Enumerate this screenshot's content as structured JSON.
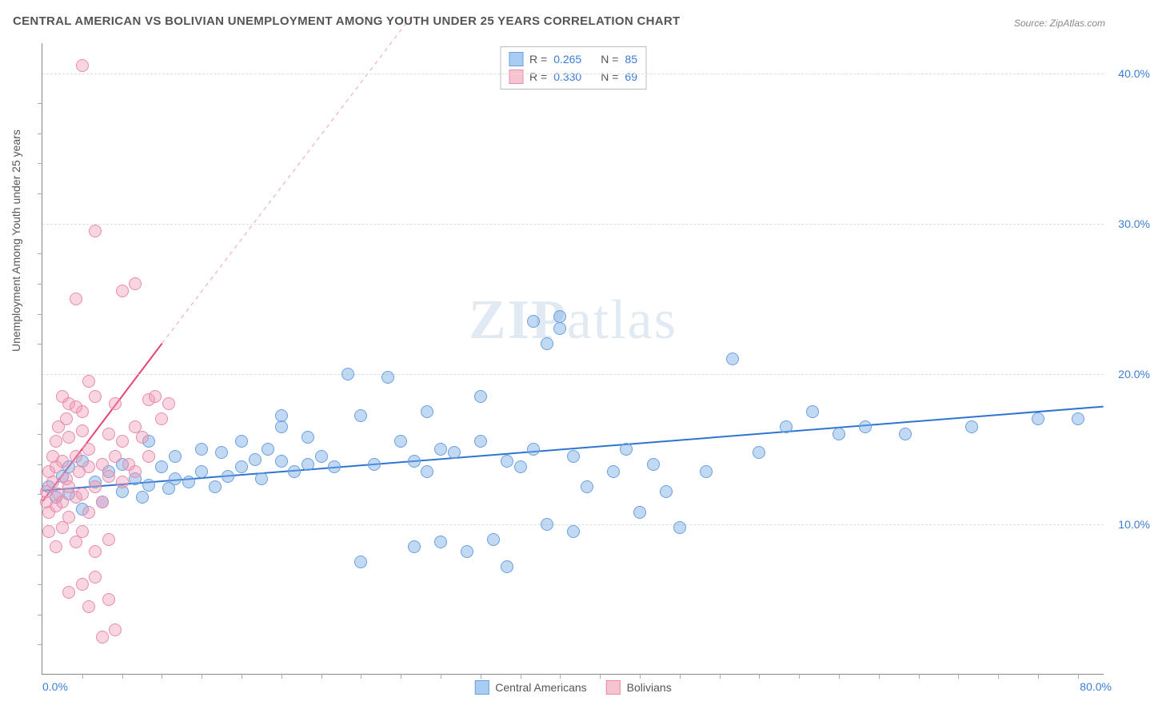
{
  "title": "CENTRAL AMERICAN VS BOLIVIAN UNEMPLOYMENT AMONG YOUTH UNDER 25 YEARS CORRELATION CHART",
  "source": "Source: ZipAtlas.com",
  "ylabel": "Unemployment Among Youth under 25 years",
  "watermark": {
    "zip": "ZIP",
    "atlas": "atlas"
  },
  "chart": {
    "type": "scatter",
    "background_color": "#ffffff",
    "grid_color": "#dddddd",
    "axis_color": "#888888",
    "label_color": "#555555",
    "value_color": "#3b7dd8",
    "title_fontsize": 15,
    "label_fontsize": 14,
    "marker_radius": 8,
    "marker_border_width": 1,
    "xlim": [
      0,
      80
    ],
    "ylim": [
      0,
      42
    ],
    "x_ticks": [
      0,
      80
    ],
    "x_tick_labels": [
      "0.0%",
      "80.0%"
    ],
    "x_minor_ticks": [
      3,
      6,
      9,
      12,
      15,
      18,
      21,
      24,
      27,
      30,
      33,
      36,
      39,
      42,
      45,
      48,
      51,
      54,
      57,
      60,
      63,
      66,
      69,
      72,
      75,
      78
    ],
    "y_ticks": [
      10,
      20,
      30,
      40
    ],
    "y_tick_labels": [
      "10.0%",
      "20.0%",
      "30.0%",
      "40.0%"
    ],
    "y_minor_ticks": [
      2,
      4,
      6,
      8,
      12,
      14,
      16,
      18,
      22,
      24,
      26,
      28,
      32,
      34,
      36,
      38
    ],
    "correlation_box": {
      "rows": [
        {
          "swatch_fill": "#a9cdf2",
          "swatch_border": "#6aa0e0",
          "r_label": "R =",
          "r_val": "0.265",
          "n_label": "N =",
          "n_val": "85"
        },
        {
          "swatch_fill": "#f6c4d1",
          "swatch_border": "#e98ca8",
          "r_label": "R =",
          "r_val": "0.330",
          "n_label": "N =",
          "n_val": "69"
        }
      ]
    },
    "bottom_legend": [
      {
        "swatch_fill": "#a9cdf2",
        "swatch_border": "#6aa0e0",
        "label": "Central Americans"
      },
      {
        "swatch_fill": "#f6c4d1",
        "swatch_border": "#e98ca8",
        "label": "Bolivians"
      }
    ],
    "series": [
      {
        "name": "Central Americans",
        "color_fill": "rgba(120,170,230,0.45)",
        "color_border": "#6aa0e0",
        "trend_color": "#2e74d0",
        "trend_width": 2,
        "trend_dash_extend": false,
        "trend": {
          "x1": 0,
          "y1": 12.2,
          "x2": 80,
          "y2": 17.8
        },
        "points": [
          [
            0.5,
            12.5
          ],
          [
            1,
            11.8
          ],
          [
            1.5,
            13.2
          ],
          [
            2,
            12.0
          ],
          [
            2,
            13.8
          ],
          [
            3,
            11.0
          ],
          [
            3,
            14.2
          ],
          [
            4,
            12.8
          ],
          [
            4.5,
            11.5
          ],
          [
            5,
            13.5
          ],
          [
            6,
            14.0
          ],
          [
            6,
            12.2
          ],
          [
            7,
            13.0
          ],
          [
            7.5,
            11.8
          ],
          [
            8,
            12.6
          ],
          [
            8,
            15.5
          ],
          [
            9,
            13.8
          ],
          [
            9.5,
            12.4
          ],
          [
            10,
            14.5
          ],
          [
            10,
            13.0
          ],
          [
            11,
            12.8
          ],
          [
            12,
            13.5
          ],
          [
            12,
            15.0
          ],
          [
            13,
            12.5
          ],
          [
            13.5,
            14.8
          ],
          [
            14,
            13.2
          ],
          [
            15,
            13.8
          ],
          [
            15,
            15.5
          ],
          [
            16,
            14.3
          ],
          [
            16.5,
            13.0
          ],
          [
            17,
            15.0
          ],
          [
            18,
            14.2
          ],
          [
            18,
            16.5
          ],
          [
            19,
            13.5
          ],
          [
            20,
            15.8
          ],
          [
            20,
            14.0
          ],
          [
            18,
            17.2
          ],
          [
            21,
            14.5
          ],
          [
            22,
            13.8
          ],
          [
            23,
            20.0
          ],
          [
            24,
            17.2
          ],
          [
            24,
            7.5
          ],
          [
            25,
            14.0
          ],
          [
            26,
            19.8
          ],
          [
            27,
            15.5
          ],
          [
            28,
            14.2
          ],
          [
            28,
            8.5
          ],
          [
            29,
            13.5
          ],
          [
            30,
            15.0
          ],
          [
            30,
            8.8
          ],
          [
            31,
            14.8
          ],
          [
            32,
            8.2
          ],
          [
            33,
            15.5
          ],
          [
            33,
            18.5
          ],
          [
            34,
            9.0
          ],
          [
            35,
            14.2
          ],
          [
            35,
            7.2
          ],
          [
            36,
            13.8
          ],
          [
            37,
            15.0
          ],
          [
            38,
            10.0
          ],
          [
            38,
            22.0
          ],
          [
            39,
            23.0
          ],
          [
            39,
            23.8
          ],
          [
            40,
            14.5
          ],
          [
            41,
            12.5
          ],
          [
            40,
            9.5
          ],
          [
            43,
            13.5
          ],
          [
            44,
            15.0
          ],
          [
            45,
            10.8
          ],
          [
            46,
            14.0
          ],
          [
            47,
            12.2
          ],
          [
            48,
            9.8
          ],
          [
            50,
            13.5
          ],
          [
            52,
            21.0
          ],
          [
            54,
            14.8
          ],
          [
            56,
            16.5
          ],
          [
            58,
            17.5
          ],
          [
            60,
            16.0
          ],
          [
            62,
            16.5
          ],
          [
            65,
            16.0
          ],
          [
            70,
            16.5
          ],
          [
            75,
            17.0
          ],
          [
            78,
            17.0
          ],
          [
            37,
            23.5
          ],
          [
            29,
            17.5
          ]
        ]
      },
      {
        "name": "Bolivians",
        "color_fill": "rgba(240,150,180,0.40)",
        "color_border": "#e98ca8",
        "trend_color": "#e6446f",
        "trend_width": 2,
        "trend_dash_extend": true,
        "trend": {
          "x1": 0,
          "y1": 11.5,
          "x2": 9,
          "y2": 22.0
        },
        "trend_dash": {
          "x1": 9,
          "y1": 22.0,
          "x2": 28,
          "y2": 44.0
        },
        "points": [
          [
            0.3,
            11.5
          ],
          [
            0.3,
            12.2
          ],
          [
            0.5,
            10.8
          ],
          [
            0.5,
            13.5
          ],
          [
            0.5,
            9.5
          ],
          [
            0.8,
            12.8
          ],
          [
            0.8,
            14.5
          ],
          [
            1.0,
            11.2
          ],
          [
            1.0,
            13.8
          ],
          [
            1.0,
            15.5
          ],
          [
            1.0,
            8.5
          ],
          [
            1.2,
            12.0
          ],
          [
            1.2,
            16.5
          ],
          [
            1.5,
            11.5
          ],
          [
            1.5,
            14.2
          ],
          [
            1.5,
            9.8
          ],
          [
            1.8,
            13.0
          ],
          [
            1.8,
            17.0
          ],
          [
            2.0,
            12.5
          ],
          [
            2.0,
            10.5
          ],
          [
            2.0,
            15.8
          ],
          [
            2.0,
            18.0
          ],
          [
            2.5,
            11.8
          ],
          [
            2.5,
            14.5
          ],
          [
            2.5,
            8.8
          ],
          [
            2.8,
            13.5
          ],
          [
            3.0,
            12.0
          ],
          [
            3.0,
            16.2
          ],
          [
            3.0,
            9.5
          ],
          [
            3.0,
            17.5
          ],
          [
            3.5,
            13.8
          ],
          [
            3.5,
            15.0
          ],
          [
            3.5,
            10.8
          ],
          [
            4.0,
            12.5
          ],
          [
            4.0,
            18.5
          ],
          [
            4.0,
            8.2
          ],
          [
            4.5,
            14.0
          ],
          [
            4.5,
            11.5
          ],
          [
            5.0,
            13.2
          ],
          [
            5.0,
            16.0
          ],
          [
            5.0,
            9.0
          ],
          [
            5.5,
            14.5
          ],
          [
            5.5,
            18.0
          ],
          [
            6.0,
            15.5
          ],
          [
            6.0,
            12.8
          ],
          [
            6.0,
            25.5
          ],
          [
            6.5,
            14.0
          ],
          [
            7.0,
            16.5
          ],
          [
            7.0,
            13.5
          ],
          [
            7.5,
            15.8
          ],
          [
            8.0,
            18.3
          ],
          [
            8.0,
            14.5
          ],
          [
            8.5,
            18.5
          ],
          [
            9.0,
            17.0
          ],
          [
            9.5,
            18.0
          ],
          [
            3.0,
            6.0
          ],
          [
            4.0,
            6.5
          ],
          [
            3.5,
            4.5
          ],
          [
            2.0,
            5.5
          ],
          [
            5.0,
            5.0
          ],
          [
            4.5,
            2.5
          ],
          [
            5.5,
            3.0
          ],
          [
            3.0,
            40.5
          ],
          [
            4.0,
            29.5
          ],
          [
            2.5,
            25.0
          ],
          [
            7.0,
            26.0
          ],
          [
            3.5,
            19.5
          ],
          [
            2.5,
            17.8
          ],
          [
            1.5,
            18.5
          ]
        ]
      }
    ]
  }
}
